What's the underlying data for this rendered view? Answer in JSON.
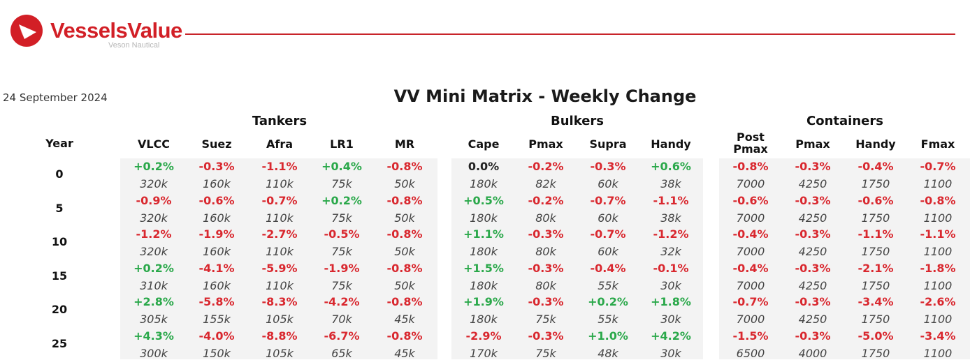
{
  "header": {
    "brand": "VesselsValue",
    "sub": "Veson Nautical",
    "logo_icon": "vesselsvalue-logo-icon",
    "accent": "#d21f26"
  },
  "date": "24 September 2024",
  "title": "VV Mini Matrix - Weekly Change",
  "year_header": "Year",
  "groups": [
    {
      "name": "Tankers",
      "columns": [
        "VLCC",
        "Suez",
        "Afra",
        "LR1",
        "MR"
      ]
    },
    {
      "name": "Bulkers",
      "columns": [
        "Cape",
        "Pmax",
        "Supra",
        "Handy"
      ]
    },
    {
      "name": "Containers",
      "columns": [
        "Post Pmax",
        "Pmax",
        "Handy",
        "Fmax"
      ]
    }
  ],
  "rows": [
    {
      "year": "0",
      "tankers": [
        [
          "+0.2%",
          "320k"
        ],
        [
          "-0.3%",
          "160k"
        ],
        [
          "-1.1%",
          "110k"
        ],
        [
          "+0.4%",
          "75k"
        ],
        [
          "-0.8%",
          "50k"
        ]
      ],
      "bulkers": [
        [
          "0.0%",
          "180k"
        ],
        [
          "-0.2%",
          "82k"
        ],
        [
          "-0.3%",
          "60k"
        ],
        [
          "+0.6%",
          "38k"
        ]
      ],
      "containers": [
        [
          "-0.8%",
          "7000"
        ],
        [
          "-0.3%",
          "4250"
        ],
        [
          "-0.4%",
          "1750"
        ],
        [
          "-0.7%",
          "1100"
        ]
      ]
    },
    {
      "year": "5",
      "tankers": [
        [
          "-0.9%",
          "320k"
        ],
        [
          "-0.6%",
          "160k"
        ],
        [
          "-0.7%",
          "110k"
        ],
        [
          "+0.2%",
          "75k"
        ],
        [
          "-0.8%",
          "50k"
        ]
      ],
      "bulkers": [
        [
          "+0.5%",
          "180k"
        ],
        [
          "-0.2%",
          "80k"
        ],
        [
          "-0.7%",
          "60k"
        ],
        [
          "-1.1%",
          "38k"
        ]
      ],
      "containers": [
        [
          "-0.6%",
          "7000"
        ],
        [
          "-0.3%",
          "4250"
        ],
        [
          "-0.6%",
          "1750"
        ],
        [
          "-0.8%",
          "1100"
        ]
      ]
    },
    {
      "year": "10",
      "tankers": [
        [
          "-1.2%",
          "320k"
        ],
        [
          "-1.9%",
          "160k"
        ],
        [
          "-2.7%",
          "110k"
        ],
        [
          "-0.5%",
          "75k"
        ],
        [
          "-0.8%",
          "50k"
        ]
      ],
      "bulkers": [
        [
          "+1.1%",
          "180k"
        ],
        [
          "-0.3%",
          "80k"
        ],
        [
          "-0.7%",
          "60k"
        ],
        [
          "-1.2%",
          "32k"
        ]
      ],
      "containers": [
        [
          "-0.4%",
          "7000"
        ],
        [
          "-0.3%",
          "4250"
        ],
        [
          "-1.1%",
          "1750"
        ],
        [
          "-1.1%",
          "1100"
        ]
      ]
    },
    {
      "year": "15",
      "tankers": [
        [
          "+0.2%",
          "310k"
        ],
        [
          "-4.1%",
          "160k"
        ],
        [
          "-5.9%",
          "110k"
        ],
        [
          "-1.9%",
          "75k"
        ],
        [
          "-0.8%",
          "50k"
        ]
      ],
      "bulkers": [
        [
          "+1.5%",
          "180k"
        ],
        [
          "-0.3%",
          "80k"
        ],
        [
          "-0.4%",
          "55k"
        ],
        [
          "-0.1%",
          "30k"
        ]
      ],
      "containers": [
        [
          "-0.4%",
          "7000"
        ],
        [
          "-0.3%",
          "4250"
        ],
        [
          "-2.1%",
          "1750"
        ],
        [
          "-1.8%",
          "1100"
        ]
      ]
    },
    {
      "year": "20",
      "tankers": [
        [
          "+2.8%",
          "305k"
        ],
        [
          "-5.8%",
          "155k"
        ],
        [
          "-8.3%",
          "105k"
        ],
        [
          "-4.2%",
          "70k"
        ],
        [
          "-0.8%",
          "45k"
        ]
      ],
      "bulkers": [
        [
          "+1.9%",
          "180k"
        ],
        [
          "-0.3%",
          "75k"
        ],
        [
          "+0.2%",
          "55k"
        ],
        [
          "+1.8%",
          "30k"
        ]
      ],
      "containers": [
        [
          "-0.7%",
          "7000"
        ],
        [
          "-0.3%",
          "4250"
        ],
        [
          "-3.4%",
          "1750"
        ],
        [
          "-2.6%",
          "1100"
        ]
      ]
    },
    {
      "year": "25",
      "tankers": [
        [
          "+4.3%",
          "300k"
        ],
        [
          "-4.0%",
          "150k"
        ],
        [
          "-8.8%",
          "105k"
        ],
        [
          "-6.7%",
          "65k"
        ],
        [
          "-0.8%",
          "45k"
        ]
      ],
      "bulkers": [
        [
          "-2.9%",
          "170k"
        ],
        [
          "-0.3%",
          "75k"
        ],
        [
          "+1.0%",
          "48k"
        ],
        [
          "+4.2%",
          "30k"
        ]
      ],
      "containers": [
        [
          "-1.5%",
          "6500"
        ],
        [
          "-0.3%",
          "4000"
        ],
        [
          "-5.0%",
          "1750"
        ],
        [
          "-3.4%",
          "1100"
        ]
      ]
    }
  ],
  "colors": {
    "positive": "#2aa84a",
    "negative": "#d9282f",
    "neutral": "#222222",
    "panel": "#f3f3f3"
  }
}
